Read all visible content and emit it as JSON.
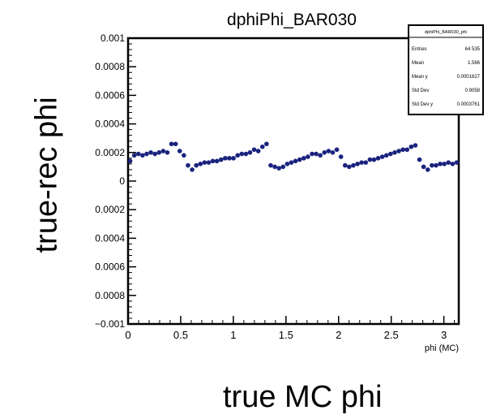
{
  "page": {
    "ylabel_outer": "true-rec phi",
    "xlabel_outer": "true MC phi"
  },
  "chart_data": {
    "type": "scatter",
    "title": "dphiPhi_BAR030",
    "xlabel": "phi (MC)",
    "ylabel": "",
    "xlim": [
      0,
      3.14159
    ],
    "ylim": [
      -0.001,
      0.001
    ],
    "x_ticks": [
      0,
      0.5,
      1,
      1.5,
      2,
      2.5,
      3
    ],
    "x_tick_labels": [
      "0",
      "0.5",
      "1",
      "1.5",
      "2",
      "2.5",
      "3"
    ],
    "y_ticks": [
      -0.001,
      -0.0008,
      -0.0006,
      -0.0004,
      -0.0002,
      0,
      0.0002,
      0.0004,
      0.0006,
      0.0008,
      0.001
    ],
    "y_tick_labels": [
      "−0.001",
      "0.0008",
      "0.0006",
      "0.0004",
      "0.0002",
      "0",
      "0.0002",
      "0.0004",
      "0.0006",
      "0.0008",
      "0.001"
    ],
    "marker_color": "#1a237e",
    "series": [
      {
        "x": [
          0.0196,
          0.0589,
          0.0982,
          0.1374,
          0.1767,
          0.216,
          0.2553,
          0.2945,
          0.3338,
          0.3731,
          0.4123,
          0.4516,
          0.4909,
          0.5301,
          0.5694,
          0.6087,
          0.648,
          0.6872,
          0.7265,
          0.7658,
          0.805,
          0.8443,
          0.8836,
          0.9228,
          0.9621,
          1.0014,
          1.0407,
          1.0799,
          1.1192,
          1.1585,
          1.1977,
          1.237,
          1.2763,
          1.3155,
          1.3548,
          1.3941,
          1.4334,
          1.4726,
          1.5119,
          1.5512,
          1.5904,
          1.6297,
          1.669,
          1.7082,
          1.7475,
          1.7868,
          1.8261,
          1.8653,
          1.9046,
          1.9439,
          1.9831,
          2.0224,
          2.0617,
          2.1009,
          2.1402,
          2.1795,
          2.2188,
          2.258,
          2.2973,
          2.3366,
          2.3758,
          2.4151,
          2.4544,
          2.4936,
          2.5329,
          2.5722,
          2.6115,
          2.6507,
          2.69,
          2.7293,
          2.7685,
          2.8078,
          2.8471,
          2.8863,
          2.9256,
          2.9649,
          3.0042,
          3.0434,
          3.0827,
          3.122
        ],
        "y": [
          0.00014,
          0.00018,
          0.00019,
          0.00018,
          0.00019,
          0.0002,
          0.00019,
          0.0002,
          0.00021,
          0.0002,
          0.00026,
          0.00026,
          0.00021,
          0.00018,
          0.00011,
          8e-05,
          0.00011,
          0.00012,
          0.00013,
          0.00013,
          0.00014,
          0.00014,
          0.00015,
          0.00016,
          0.00016,
          0.00016,
          0.00018,
          0.00019,
          0.00019,
          0.0002,
          0.00022,
          0.00021,
          0.00024,
          0.00026,
          0.00011,
          0.0001,
          9e-05,
          0.0001,
          0.00012,
          0.00013,
          0.00014,
          0.00015,
          0.00016,
          0.00017,
          0.00019,
          0.00019,
          0.00018,
          0.0002,
          0.00021,
          0.0002,
          0.00022,
          0.00017,
          0.00011,
          0.0001,
          0.00011,
          0.00012,
          0.00013,
          0.00013,
          0.00015,
          0.00015,
          0.00016,
          0.00017,
          0.00018,
          0.00019,
          0.0002,
          0.00021,
          0.00022,
          0.00022,
          0.00024,
          0.00025,
          0.00015,
          0.0001,
          8e-05,
          0.00011,
          0.00011,
          0.00012,
          0.00012,
          0.00013,
          0.00012,
          0.00013
        ]
      }
    ],
    "stats_box": {
      "title": "dphiPhi_BAR030_pfx",
      "rows": [
        {
          "label": "Entries",
          "value": "64 535"
        },
        {
          "label": "Mean",
          "value": "1.566"
        },
        {
          "label": "Mean y",
          "value": "0.0001627"
        },
        {
          "label": "Std Dev",
          "value": "0.9058"
        },
        {
          "label": "Std Dev y",
          "value": "0.0003761"
        }
      ]
    }
  }
}
